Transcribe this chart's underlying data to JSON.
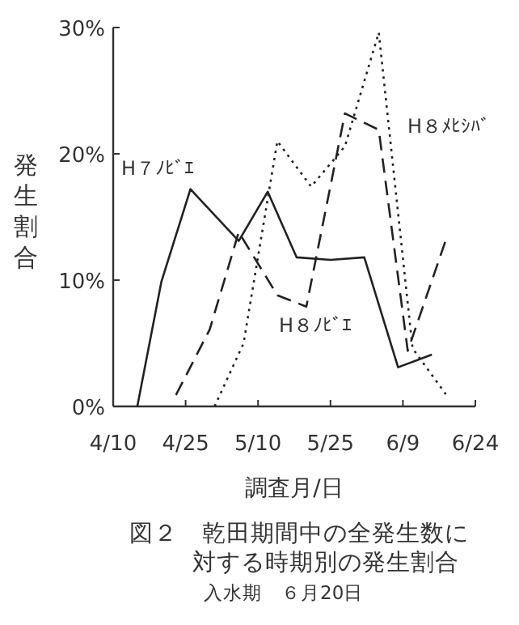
{
  "chart_data": {
    "type": "line",
    "title": "図２　乾田期間中の全発生数に対する時期別の発生割合",
    "xlabel": "調査月/日",
    "ylabel": "発生割合",
    "annotations": [
      "入水期　６月20日"
    ],
    "xlim": [
      "--04-10",
      "--06-24"
    ],
    "xticks": [
      {
        "value": "--04-10",
        "label": "4/10"
      },
      {
        "value": "--04-25",
        "label": "4/25"
      },
      {
        "value": "--05-10",
        "label": "5/10"
      },
      {
        "value": "--05-25",
        "label": "5/25"
      },
      {
        "value": "--06-09",
        "label": "6/9"
      },
      {
        "value": "--06-24",
        "label": "6/24"
      }
    ],
    "ylim": [
      0,
      30
    ],
    "yticks": [
      {
        "value": 0,
        "label": "0%"
      },
      {
        "value": 10,
        "label": "10%"
      },
      {
        "value": 20,
        "label": "20%"
      },
      {
        "value": 30,
        "label": "30%"
      }
    ],
    "marker": "none",
    "series": [
      {
        "name": "H７ﾉﾋﾞｴ",
        "color": "#222222",
        "line_style": "solid",
        "x": [
          "--04-15",
          "--04-20",
          "--04-26",
          "--05-06",
          "--05-12",
          "--05-18",
          "--05-25",
          "--06-01",
          "--06-08",
          "--06-15"
        ],
        "values": [
          0,
          9.9,
          17.2,
          13.1,
          17.0,
          11.8,
          11.6,
          11.8,
          3.1,
          4.1
        ]
      },
      {
        "name": "H８ﾉﾋﾞｴ",
        "color": "#222222",
        "line_style": "dashed",
        "x": [
          "--04-23",
          "--04-30",
          "--05-06",
          "--05-14",
          "--05-20",
          "--05-28",
          "--06-04",
          "--06-10",
          "--06-18"
        ],
        "values": [
          0.9,
          6.1,
          13.8,
          8.8,
          7.9,
          23.2,
          21.9,
          4.4,
          13.3
        ]
      },
      {
        "name": "H８ﾒﾋｼﾊﾞ",
        "color": "#222222",
        "line_style": "dotted",
        "x": [
          "--05-01",
          "--05-07",
          "--05-14",
          "--05-21",
          "--05-28",
          "--06-04",
          "--06-11",
          "--06-18"
        ],
        "values": [
          0,
          5.0,
          21.0,
          17.4,
          20.6,
          29.6,
          4.6,
          0.9
        ]
      }
    ]
  }
}
